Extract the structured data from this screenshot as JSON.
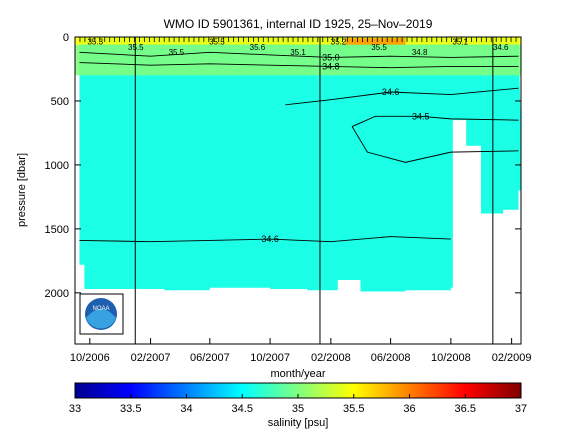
{
  "chart_data": {
    "type": "heatmap",
    "title": "WMO ID 5901361, internal ID 1925, 25–Nov–2019",
    "xlabel": "month/year",
    "ylabel": "pressure [dbar]",
    "ylim": [
      2400,
      0
    ],
    "y_reversed": true,
    "xlim": [
      "2006-09-01",
      "2009-02-20"
    ],
    "x_ticks": [
      {
        "date": "2006-10-01",
        "label": "10/2006"
      },
      {
        "date": "2007-02-01",
        "label": "02/2007"
      },
      {
        "date": "2007-06-01",
        "label": "06/2007"
      },
      {
        "date": "2007-10-01",
        "label": "10/2007"
      },
      {
        "date": "2008-02-01",
        "label": "02/2008"
      },
      {
        "date": "2008-06-01",
        "label": "06/2008"
      },
      {
        "date": "2008-10-01",
        "label": "10/2008"
      },
      {
        "date": "2009-02-01",
        "label": "02/2009"
      }
    ],
    "y_ticks": [
      0,
      500,
      1000,
      1500,
      2000
    ],
    "colorbar": {
      "label": "salinity [psu]",
      "range": [
        33,
        37
      ],
      "ticks": [
        33,
        33.5,
        34,
        34.5,
        35,
        35.5,
        36,
        36.5,
        37
      ]
    },
    "background_value": 34.6,
    "profile_bottoms": [
      {
        "date": "2006-09-10",
        "pressure": 1780
      },
      {
        "date": "2006-09-20",
        "pressure": 1970
      },
      {
        "date": "2007-03-01",
        "pressure": 1980
      },
      {
        "date": "2007-06-01",
        "pressure": 1960
      },
      {
        "date": "2007-10-01",
        "pressure": 1970
      },
      {
        "date": "2007-12-15",
        "pressure": 1980
      },
      {
        "date": "2008-02-15",
        "pressure": 1900
      },
      {
        "date": "2008-04-01",
        "pressure": 1990
      },
      {
        "date": "2008-07-01",
        "pressure": 1980
      },
      {
        "date": "2008-10-01",
        "pressure": 1960
      },
      {
        "date": "2008-10-05",
        "pressure": 650
      },
      {
        "date": "2008-11-01",
        "pressure": 850
      },
      {
        "date": "2008-12-01",
        "pressure": 1380
      },
      {
        "date": "2009-01-15",
        "pressure": 1350
      },
      {
        "date": "2009-02-15",
        "pressure": 1200
      }
    ],
    "contours": [
      {
        "value": 34.6,
        "label": "34.6",
        "points": [
          [
            "2006-09-10",
            1590
          ],
          [
            "2007-02-01",
            1600
          ],
          [
            "2007-06-01",
            1590
          ],
          [
            "2007-10-01",
            1580
          ],
          [
            "2008-02-01",
            1600
          ],
          [
            "2008-06-01",
            1560
          ],
          [
            "2008-10-01",
            1580
          ]
        ]
      },
      {
        "value": 34.6,
        "label": "34.6",
        "points": [
          [
            "2007-11-01",
            530
          ],
          [
            "2008-02-01",
            490
          ],
          [
            "2008-06-01",
            430
          ],
          [
            "2008-10-01",
            450
          ],
          [
            "2009-02-15",
            400
          ]
        ]
      },
      {
        "value": 34.5,
        "label": "34.5",
        "points": [
          [
            "2008-03-15",
            700
          ],
          [
            "2008-05-01",
            620
          ],
          [
            "2008-08-01",
            620
          ],
          [
            "2008-10-01",
            640
          ],
          [
            "2009-02-15",
            650
          ]
        ]
      },
      {
        "value": 34.5,
        "label": "",
        "points": [
          [
            "2008-03-15",
            700
          ],
          [
            "2008-04-15",
            900
          ],
          [
            "2008-07-01",
            980
          ],
          [
            "2008-10-01",
            900
          ],
          [
            "2009-02-15",
            890
          ]
        ]
      },
      {
        "value": 34.8,
        "label": "34.8",
        "points": [
          [
            "2006-09-10",
            200
          ],
          [
            "2007-02-01",
            220
          ],
          [
            "2007-06-01",
            210
          ],
          [
            "2007-10-01",
            220
          ],
          [
            "2008-02-01",
            230
          ],
          [
            "2008-06-01",
            240
          ],
          [
            "2008-10-01",
            230
          ],
          [
            "2009-02-15",
            230
          ]
        ]
      },
      {
        "value": 35.0,
        "label": "35.0",
        "points": [
          [
            "2006-09-10",
            120
          ],
          [
            "2007-02-01",
            150
          ],
          [
            "2007-06-01",
            120
          ],
          [
            "2007-10-01",
            140
          ],
          [
            "2008-02-01",
            160
          ],
          [
            "2008-06-01",
            150
          ],
          [
            "2008-10-01",
            160
          ],
          [
            "2009-02-15",
            150
          ]
        ]
      }
    ],
    "contour_labels": [
      "35.3",
      "35.5",
      "35.5",
      "35.5",
      "35.6",
      "35.1",
      "35.2",
      "35.5",
      "34.8",
      "35.1",
      "34.6"
    ],
    "surface_bands": [
      {
        "value": 35.0,
        "from": 60,
        "to": 300
      },
      {
        "value": 35.5,
        "from": 0,
        "to": 60
      },
      {
        "value": 35.9,
        "from": 10,
        "to": 60,
        "x_from": "2008-03-01",
        "x_to": "2008-07-01"
      }
    ],
    "event_lines": [
      "2007-01-01",
      "2008-01-10",
      "2008-12-25"
    ],
    "logo": "NOAA"
  }
}
